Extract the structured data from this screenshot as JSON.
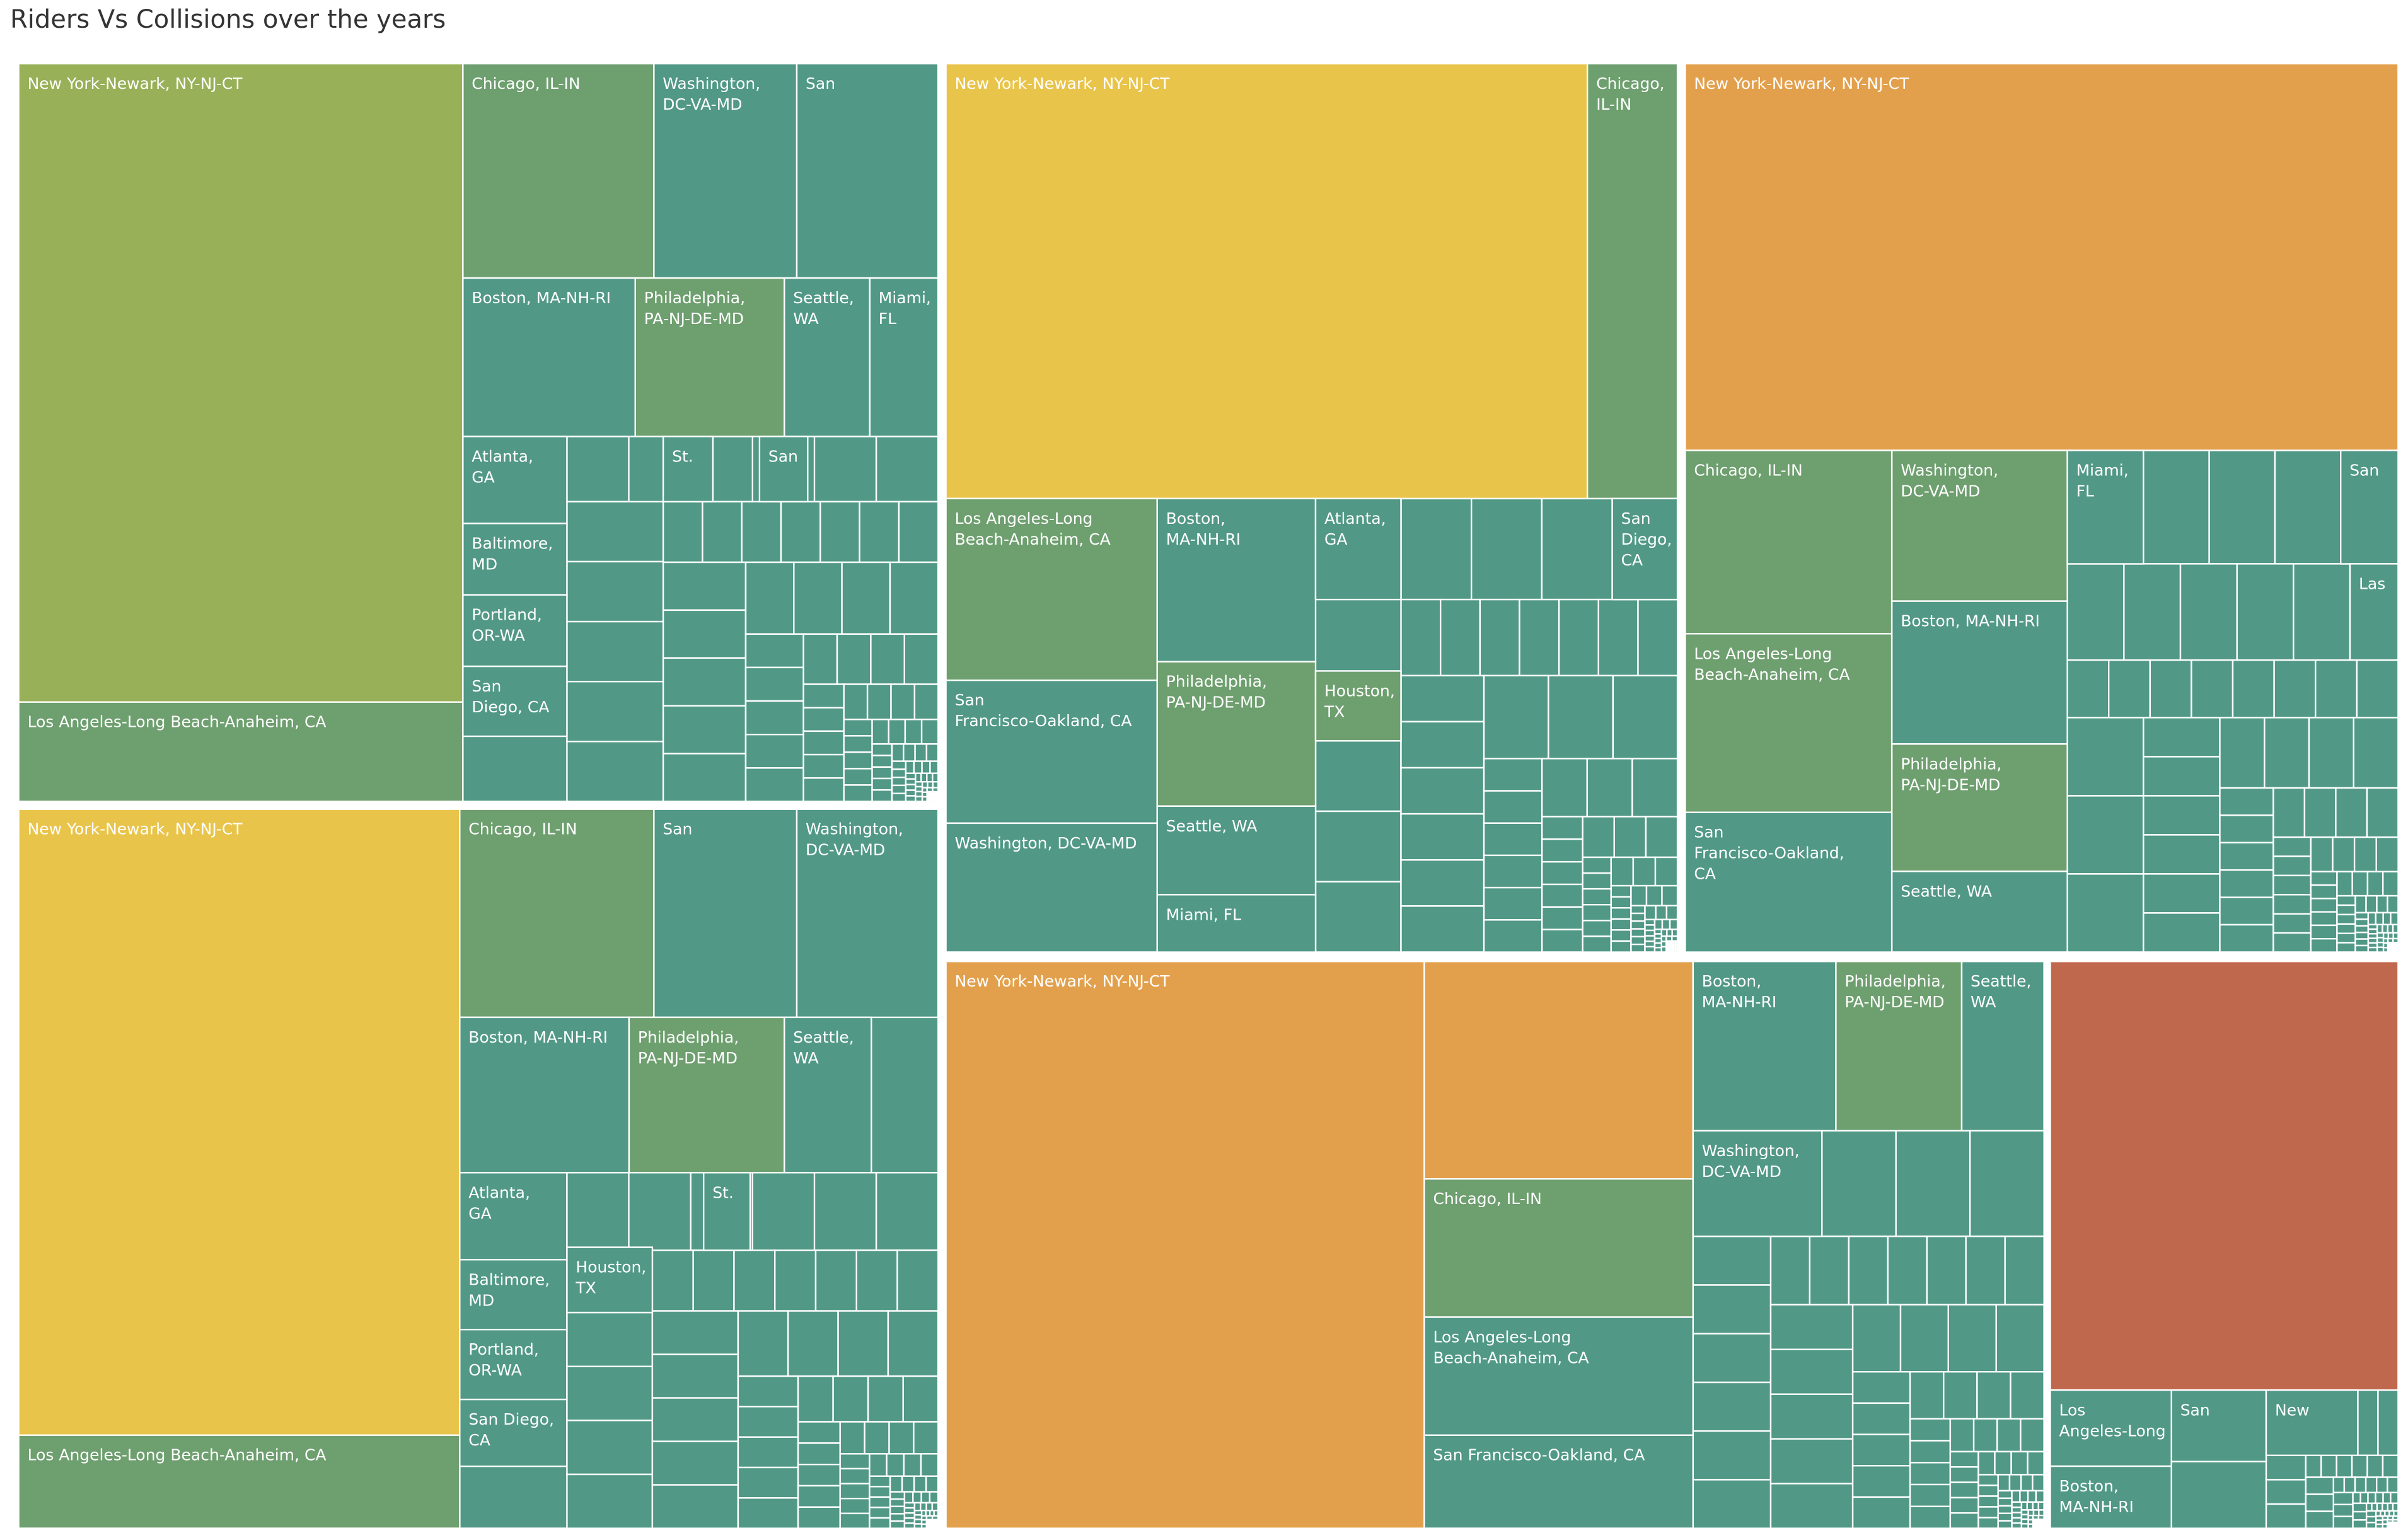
{
  "title": "Riders Vs Collisions over the years",
  "colors": {
    "teal": "#519886",
    "sage": "#6e9f6f",
    "olive": "#98b057",
    "yellow": "#e9c44a",
    "orange": "#e3a04c",
    "red": "#c0684e",
    "border": "#ffffff"
  },
  "chart_data": {
    "type": "treemap",
    "title": "Riders Vs Collisions over the years",
    "note": "Tiles: Metro area sized by riders, colored by collisions; one block per year. Unlabeled small tiles are individual metro areas whose names are not printed.",
    "blocks": [
      {
        "tiles": [
          {
            "label": "New York-Newark, NY-NJ-CT",
            "color": "olive"
          },
          {
            "label": "Los Angeles-Long Beach-Anaheim, CA",
            "color": "sage"
          },
          {
            "label": "Chicago, IL-IN",
            "color": "sage"
          },
          {
            "label": "Washington, DC-VA-MD",
            "color": "teal"
          },
          {
            "label": "San",
            "color": "teal"
          },
          {
            "label": "Boston, MA-NH-RI",
            "color": "teal"
          },
          {
            "label": "Philadelphia, PA-NJ-DE-MD",
            "color": "sage"
          },
          {
            "label": "Seattle, WA",
            "color": "teal"
          },
          {
            "label": "Miami, FL",
            "color": "teal"
          },
          {
            "label": "Atlanta, GA",
            "color": "teal"
          },
          {
            "label": "St.",
            "color": "teal"
          },
          {
            "label": "San",
            "color": "teal"
          },
          {
            "label": "Baltimore, MD",
            "color": "teal"
          },
          {
            "label": "Portland, OR-WA",
            "color": "teal"
          },
          {
            "label": "San Diego, CA",
            "color": "teal"
          }
        ]
      },
      {
        "tiles": [
          {
            "label": "New York-Newark, NY-NJ-CT",
            "color": "yellow"
          },
          {
            "label": "Chicago, IL-IN",
            "color": "sage"
          },
          {
            "label": "Los Angeles-Long Beach-Anaheim, CA",
            "color": "sage"
          },
          {
            "label": "San Francisco-Oakland, CA",
            "color": "teal"
          },
          {
            "label": "Washington, DC-VA-MD",
            "color": "teal"
          },
          {
            "label": "Boston, MA-NH-RI",
            "color": "teal"
          },
          {
            "label": "Philadelphia, PA-NJ-DE-MD",
            "color": "sage"
          },
          {
            "label": "Seattle, WA",
            "color": "teal"
          },
          {
            "label": "Miami, FL",
            "color": "teal"
          },
          {
            "label": "Atlanta, GA",
            "color": "teal"
          },
          {
            "label": "Houston, TX",
            "color": "sage"
          },
          {
            "label": "San Diego, CA",
            "color": "teal"
          }
        ]
      },
      {
        "tiles": [
          {
            "label": "New York-Newark, NY-NJ-CT",
            "color": "orange"
          },
          {
            "label": "Chicago, IL-IN",
            "color": "sage"
          },
          {
            "label": "Washington, DC-VA-MD",
            "color": "sage"
          },
          {
            "label": "Miami, FL",
            "color": "teal"
          },
          {
            "label": "San",
            "color": "teal"
          },
          {
            "label": "Las",
            "color": "teal"
          },
          {
            "label": "Los Angeles-Long Beach-Anaheim, CA",
            "color": "sage"
          },
          {
            "label": "Boston, MA-NH-RI",
            "color": "teal"
          },
          {
            "label": "San Francisco-Oakland, CA",
            "color": "teal"
          },
          {
            "label": "Philadelphia, PA-NJ-DE-MD",
            "color": "sage"
          },
          {
            "label": "Seattle, WA",
            "color": "teal"
          }
        ]
      },
      {
        "tiles": [
          {
            "label": "New York-Newark, NY-NJ-CT",
            "color": "yellow"
          },
          {
            "label": "Los Angeles-Long Beach-Anaheim, CA",
            "color": "sage"
          },
          {
            "label": "Chicago, IL-IN",
            "color": "sage"
          },
          {
            "label": "San",
            "color": "teal"
          },
          {
            "label": "Washington, DC-VA-MD",
            "color": "teal"
          },
          {
            "label": "Boston, MA-NH-RI",
            "color": "teal"
          },
          {
            "label": "Philadelphia, PA-NJ-DE-MD",
            "color": "sage"
          },
          {
            "label": "Seattle, WA",
            "color": "teal"
          },
          {
            "label": "Atlanta, GA",
            "color": "teal"
          },
          {
            "label": "St.",
            "color": "teal"
          },
          {
            "label": "Houston, TX",
            "color": "teal"
          },
          {
            "label": "Baltimore, MD",
            "color": "teal"
          },
          {
            "label": "Portland, OR-WA",
            "color": "teal"
          },
          {
            "label": "San Diego, CA",
            "color": "teal"
          }
        ]
      },
      {
        "tiles": [
          {
            "label": "New York-Newark, NY-NJ-CT",
            "color": "orange"
          },
          {
            "label": "",
            "color": "orange"
          },
          {
            "label": "Chicago, IL-IN",
            "color": "sage"
          },
          {
            "label": "Los Angeles-Long Beach-Anaheim, CA",
            "color": "teal"
          },
          {
            "label": "San Francisco-Oakland, CA",
            "color": "teal"
          },
          {
            "label": "Boston, MA-NH-RI",
            "color": "teal"
          },
          {
            "label": "Philadelphia, PA-NJ-DE-MD",
            "color": "sage"
          },
          {
            "label": "Seattle, WA",
            "color": "teal"
          },
          {
            "label": "Washington, DC-VA-MD",
            "color": "teal"
          }
        ]
      },
      {
        "tiles": [
          {
            "label": "",
            "color": "red"
          },
          {
            "label": "Los Angeles-Long",
            "color": "teal"
          },
          {
            "label": "Boston, MA-NH-RI",
            "color": "teal"
          },
          {
            "label": "San",
            "color": "teal"
          },
          {
            "label": "New",
            "color": "teal"
          }
        ]
      }
    ]
  }
}
